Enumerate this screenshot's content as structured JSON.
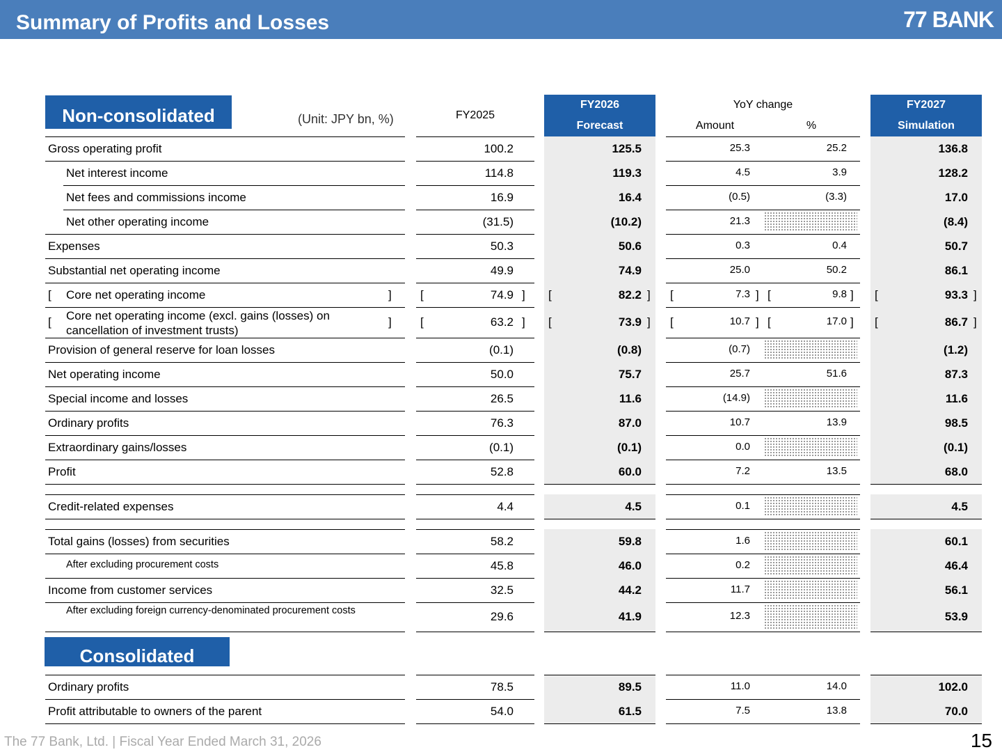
{
  "header": {
    "title": "Summary of Profits and Losses",
    "brand": "77 BANK"
  },
  "sections": {
    "nonconsolidated": "Non-consolidated",
    "consolidated": "Consolidated"
  },
  "unit": "(Unit: JPY bn, %)",
  "columns": {
    "fy2025": "FY2025",
    "fy2026_line1": "FY2026",
    "fy2026_line2": "Forecast",
    "yoy": "YoY change",
    "amount": "Amount",
    "pct": "%",
    "fy2027_line1": "FY2027",
    "fy2027_line2": "Simulation"
  },
  "rows": [
    {
      "label": "Gross operating profit",
      "fy2025": "100.2",
      "fy2026": "125.5",
      "amt": "25.3",
      "pct": "25.2",
      "fy2027": "136.8"
    },
    {
      "label": "Net interest income",
      "fy2025": "114.8",
      "fy2026": "119.3",
      "amt": "4.5",
      "pct": "3.9",
      "fy2027": "128.2"
    },
    {
      "label": "Net fees and commissions income",
      "fy2025": "16.9",
      "fy2026": "16.4",
      "amt": "(0.5)",
      "pct": "(3.3)",
      "fy2027": "17.0"
    },
    {
      "label": "Net other operating income",
      "fy2025": "(31.5)",
      "fy2026": "(10.2)",
      "amt": "21.3",
      "pct": "",
      "fy2027": "(8.4)"
    },
    {
      "label": "Expenses",
      "fy2025": "50.3",
      "fy2026": "50.6",
      "amt": "0.3",
      "pct": "0.4",
      "fy2027": "50.7"
    },
    {
      "label": "Substantial net operating income",
      "fy2025": "49.9",
      "fy2026": "74.9",
      "amt": "25.0",
      "pct": "50.2",
      "fy2027": "86.1"
    },
    {
      "label": "Core net operating income",
      "fy2025": "74.9",
      "fy2026": "82.2",
      "amt": "7.3",
      "pct": "9.8",
      "fy2027": "93.3"
    },
    {
      "label": "Core net operating income (excl. gains (losses) on cancellation of investment trusts)",
      "fy2025": "63.2",
      "fy2026": "73.9",
      "amt": "10.7",
      "pct": "17.0",
      "fy2027": "86.7"
    },
    {
      "label": "Provision of general reserve for loan losses",
      "fy2025": "(0.1)",
      "fy2026": "(0.8)",
      "amt": "(0.7)",
      "pct": "",
      "fy2027": "(1.2)"
    },
    {
      "label": "Net operating income",
      "fy2025": "50.0",
      "fy2026": "75.7",
      "amt": "25.7",
      "pct": "51.6",
      "fy2027": "87.3"
    },
    {
      "label": "Special income and losses",
      "fy2025": "26.5",
      "fy2026": "11.6",
      "amt": "(14.9)",
      "pct": "",
      "fy2027": "11.6"
    },
    {
      "label": "Ordinary profits",
      "fy2025": "76.3",
      "fy2026": "87.0",
      "amt": "10.7",
      "pct": "13.9",
      "fy2027": "98.5"
    },
    {
      "label": "Extraordinary gains/losses",
      "fy2025": "(0.1)",
      "fy2026": "(0.1)",
      "amt": "0.0",
      "pct": "",
      "fy2027": "(0.1)"
    },
    {
      "label": "Profit",
      "fy2025": "52.8",
      "fy2026": "60.0",
      "amt": "7.2",
      "pct": "13.5",
      "fy2027": "68.0"
    },
    {
      "label": "Credit-related expenses",
      "fy2025": "4.4",
      "fy2026": "4.5",
      "amt": "0.1",
      "pct": "",
      "fy2027": "4.5"
    },
    {
      "label": "Total gains (losses) from securities",
      "fy2025": "58.2",
      "fy2026": "59.8",
      "amt": "1.6",
      "pct": "",
      "fy2027": "60.1"
    },
    {
      "label": "After excluding procurement costs",
      "fy2025": "45.8",
      "fy2026": "46.0",
      "amt": "0.2",
      "pct": "",
      "fy2027": "46.4"
    },
    {
      "label": "Income from customer services",
      "fy2025": "32.5",
      "fy2026": "44.2",
      "amt": "11.7",
      "pct": "",
      "fy2027": "56.1"
    },
    {
      "label": "After excluding foreign currency-denominated procurement costs",
      "fy2025": "29.6",
      "fy2026": "41.9",
      "amt": "12.3",
      "pct": "",
      "fy2027": "53.9"
    },
    {
      "label": "Ordinary profits",
      "fy2025": "78.5",
      "fy2026": "89.5",
      "amt": "11.0",
      "pct": "14.0",
      "fy2027": "102.0"
    },
    {
      "label": "Profit attributable to owners of the parent",
      "fy2025": "54.0",
      "fy2026": "61.5",
      "amt": "7.5",
      "pct": "13.8",
      "fy2027": "70.0"
    }
  ],
  "bracket_open": "[",
  "bracket_close": "]",
  "footer": "The 77 Bank, Ltd. | Fiscal Year Ended March 31, 2026",
  "page_number": "15"
}
